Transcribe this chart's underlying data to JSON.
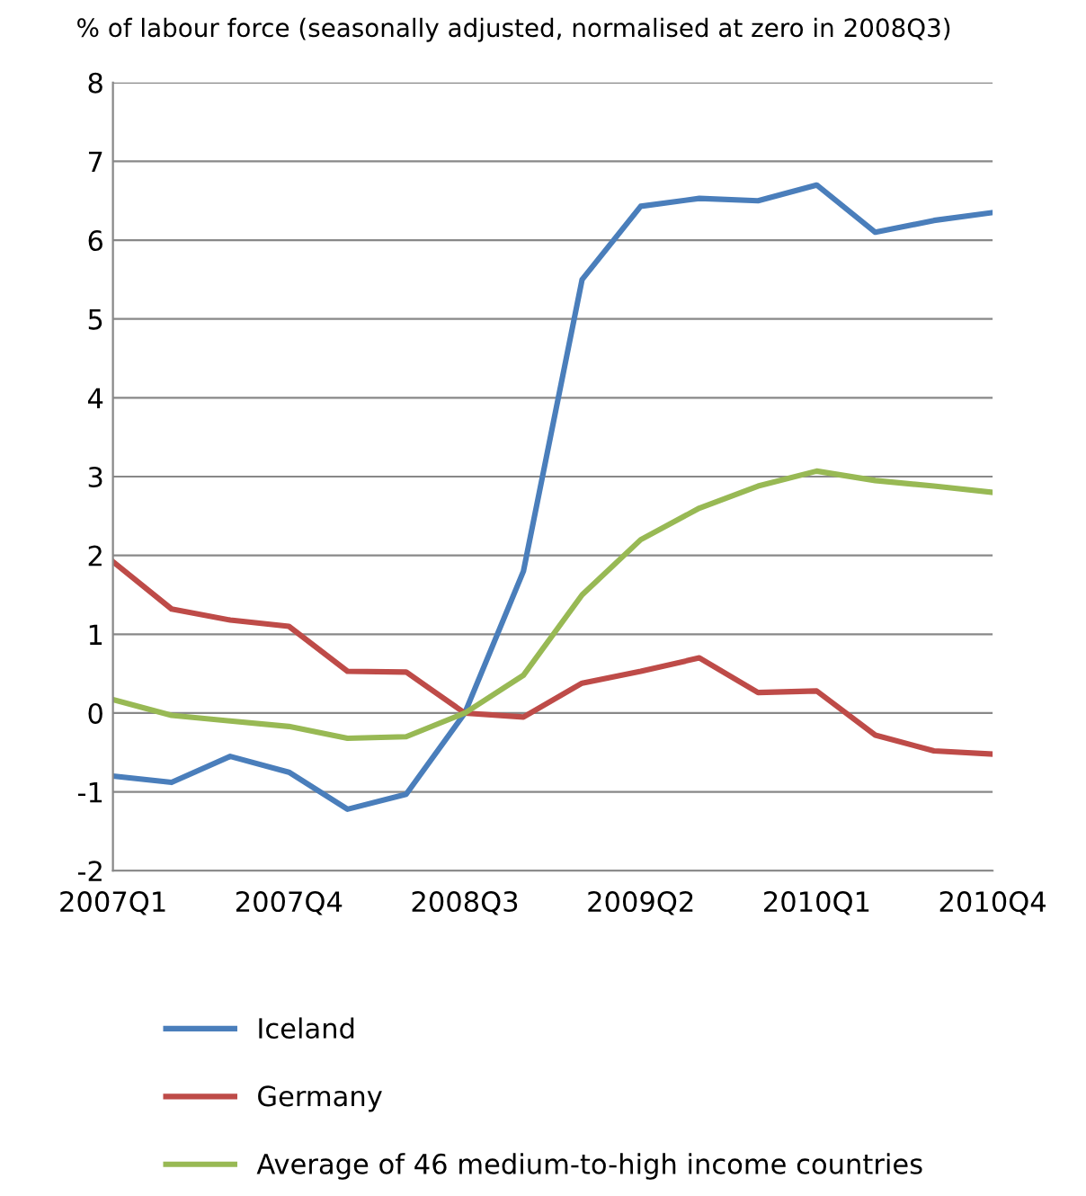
{
  "chart_data": {
    "type": "line",
    "ylabel": "% of labour force (seasonally adjusted, normalised at zero in 2008Q3)",
    "categories": [
      "2007Q1",
      null,
      null,
      "2007Q4",
      null,
      null,
      "2008Q3",
      null,
      null,
      "2009Q2",
      null,
      null,
      "2010Q1",
      null,
      null,
      "2010Q4"
    ],
    "series": [
      {
        "name": "Iceland",
        "color": "#4a7ebb",
        "values": [
          -0.8,
          -0.88,
          -0.55,
          -0.75,
          -1.22,
          -1.03,
          0,
          1.8,
          5.5,
          6.43,
          6.53,
          6.5,
          6.7,
          6.1,
          6.25,
          6.35
        ]
      },
      {
        "name": "Germany",
        "color": "#be4b48",
        "values": [
          1.92,
          1.32,
          1.18,
          1.1,
          0.53,
          0.52,
          0,
          -0.05,
          0.38,
          0.53,
          0.7,
          0.26,
          0.28,
          -0.28,
          -0.48,
          -0.52
        ]
      },
      {
        "name": "Average of 46 medium-to-high income countries",
        "color": "#98b954",
        "values": [
          0.17,
          -0.03,
          -0.1,
          -0.17,
          -0.32,
          -0.3,
          0,
          0.48,
          1.5,
          2.2,
          2.6,
          2.88,
          3.07,
          2.95,
          2.88,
          2.8
        ]
      }
    ],
    "ylim": [
      -2,
      8
    ],
    "yticks": [
      -2,
      -1,
      0,
      1,
      2,
      3,
      4,
      5,
      6,
      7,
      8
    ],
    "grid": "y",
    "legend": "bottom",
    "marker": "none",
    "line_style": "solid"
  }
}
